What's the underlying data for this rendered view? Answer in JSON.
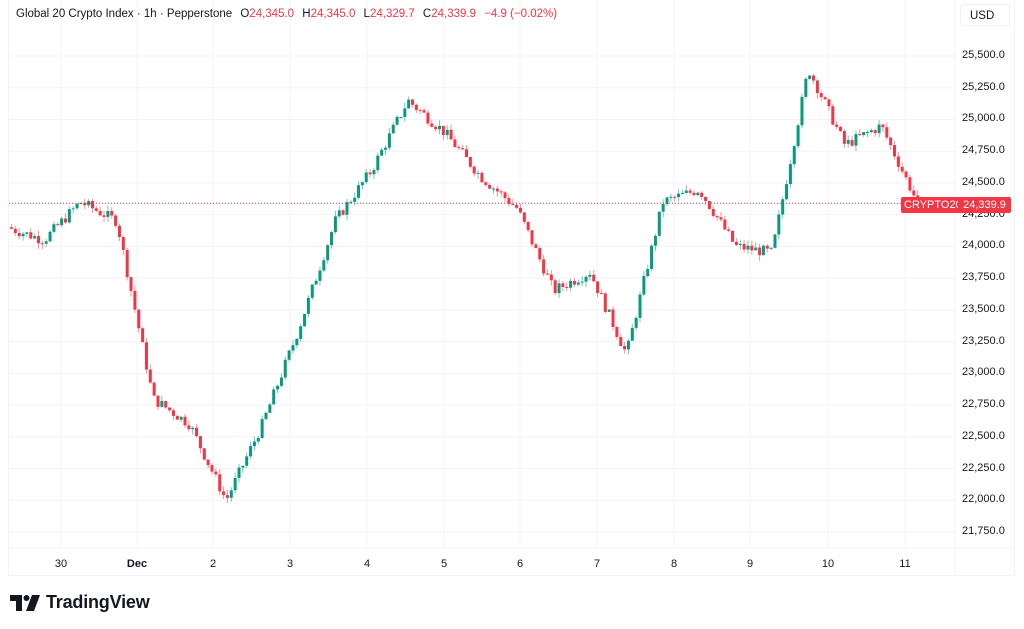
{
  "header": {
    "symbol_name": "Global 20 Crypto Index",
    "interval": "1h",
    "source": "Pepperstone",
    "separator": "·",
    "open_label": "O",
    "open": "24,345.0",
    "high_label": "H",
    "high": "24,345.0",
    "low_label": "L",
    "low": "24,329.7",
    "close_label": "C",
    "close": "24,339.9",
    "change": "−4.9 (−0.02%)",
    "currency": "USD"
  },
  "last_price": {
    "symbol_tag": "CRYPTO20",
    "value": "24,339.9"
  },
  "brand": {
    "name": "TradingView"
  },
  "colors": {
    "up": "#089981",
    "down": "#f23645",
    "grid": "#f0f3fa",
    "text": "#131722"
  },
  "chart_data": {
    "type": "candlestick",
    "title": "Global 20 Crypto Index · 1h · Pepperstone",
    "xlabel": "",
    "ylabel": "USD",
    "ylim": [
      21600,
      25600
    ],
    "grid": true,
    "legend_position": "top-left",
    "y_ticks": [
      "25,500.0",
      "25,250.0",
      "25,000.0",
      "24,750.0",
      "24,500.0",
      "24,250.0",
      "24,000.0",
      "23,750.0",
      "23,500.0",
      "23,250.0",
      "23,000.0",
      "22,750.0",
      "22,500.0",
      "22,250.0",
      "22,000.0",
      "21,750.0"
    ],
    "x_ticks": [
      "30",
      "Dec",
      "2",
      "3",
      "4",
      "5",
      "6",
      "7",
      "8",
      "9",
      "10",
      "11"
    ],
    "last_value": 24339.9,
    "approx_path": [
      {
        "x": "29 Nov",
        "price": 24150
      },
      {
        "x": "30 Nov",
        "price": 24050
      },
      {
        "x": "30 Nov late",
        "price": 24350
      },
      {
        "x": "1 Dec",
        "price": 24200
      },
      {
        "x": "1 Dec mid",
        "price": 22800
      },
      {
        "x": "1 Dec late",
        "price": 22600
      },
      {
        "x": "2 Dec",
        "price": 22000
      },
      {
        "x": "2 Dec mid",
        "price": 22600
      },
      {
        "x": "3 Dec",
        "price": 23350
      },
      {
        "x": "3 Dec mid",
        "price": 24200
      },
      {
        "x": "3.5 Dec",
        "price": 24600
      },
      {
        "x": "4 Dec",
        "price": 25150
      },
      {
        "x": "4.5 Dec",
        "price": 24900
      },
      {
        "x": "5 Dec",
        "price": 24550
      },
      {
        "x": "5.5 Dec",
        "price": 24300
      },
      {
        "x": "6 Dec",
        "price": 23650
      },
      {
        "x": "7 Dec",
        "price": 23800
      },
      {
        "x": "7.8 Dec",
        "price": 23150
      },
      {
        "x": "8 Dec",
        "price": 24350
      },
      {
        "x": "8.8 Dec",
        "price": 24450
      },
      {
        "x": "9 Dec",
        "price": 24000
      },
      {
        "x": "9.8 Dec",
        "price": 23950
      },
      {
        "x": "10 Dec",
        "price": 25400
      },
      {
        "x": "10.3 Dec",
        "price": 24800
      },
      {
        "x": "11 Dec",
        "price": 24950
      },
      {
        "x": "11.2 Dec",
        "price": 24340
      }
    ]
  }
}
